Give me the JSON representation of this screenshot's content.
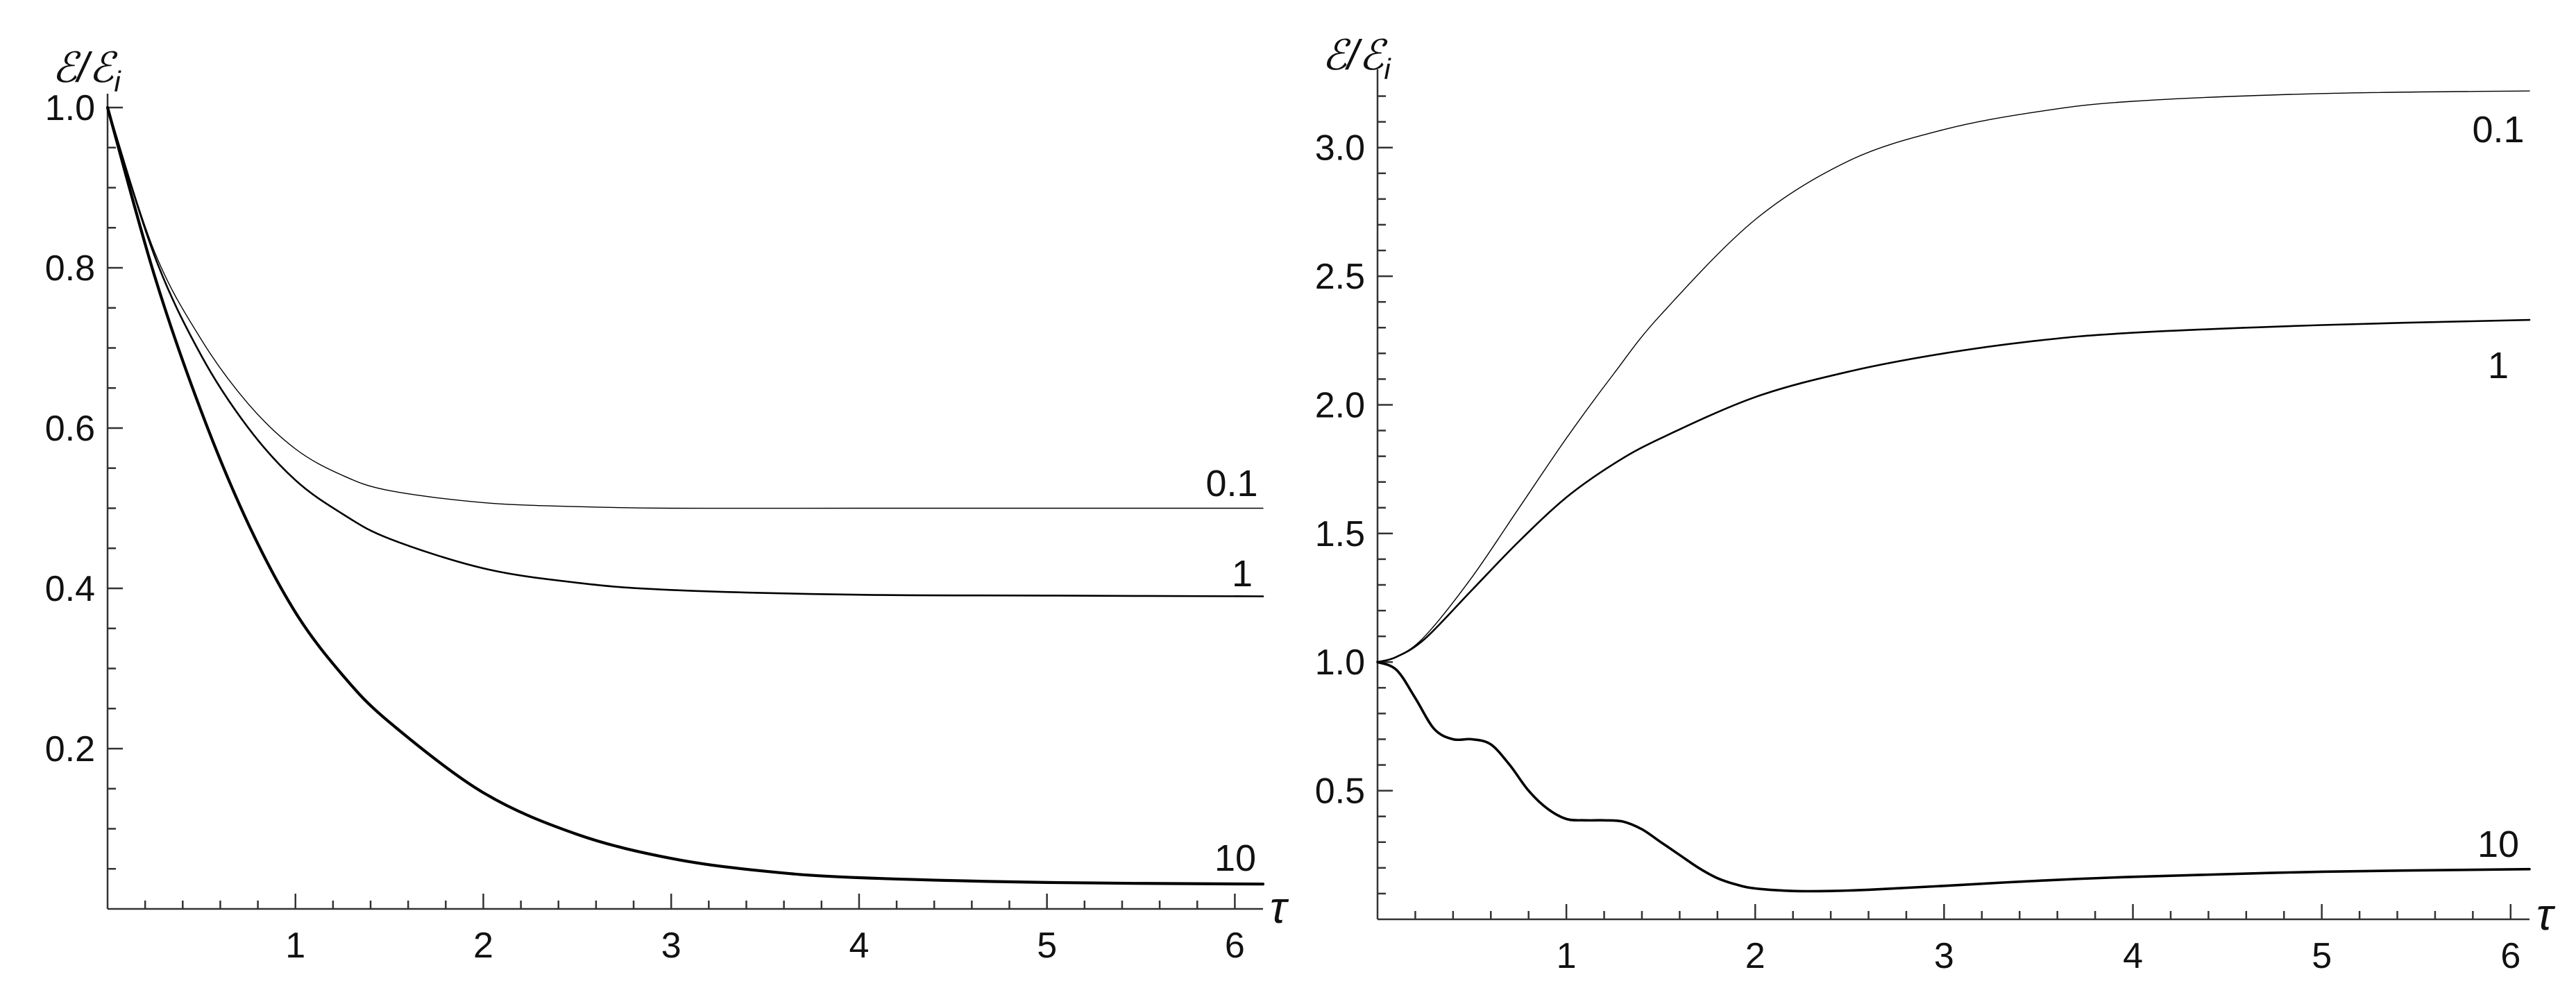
{
  "chart_data": [
    {
      "type": "line",
      "title": "",
      "xlabel": "τ",
      "ylabel": "ℰ/ℰ_i",
      "ylabel_main": "ℰ/ℰ",
      "ylabel_sub": "i",
      "xlim": [
        0,
        6.15
      ],
      "ylim": [
        0,
        1.0
      ],
      "x_ticks": [
        1,
        2,
        3,
        4,
        5,
        6
      ],
      "x_ticklabels": [
        "1",
        "2",
        "3",
        "4",
        "5",
        "6"
      ],
      "x_minor_step": 0.2,
      "y_ticks": [
        0.2,
        0.4,
        0.6,
        0.8,
        1.0
      ],
      "y_ticklabels": [
        "0.2",
        "0.4",
        "0.6",
        "0.8",
        "1.0"
      ],
      "y_minor_step": 0.05,
      "grid": false,
      "legend": "inline curve labels at right",
      "series": [
        {
          "name": "0.1",
          "weight": 1.4,
          "x": [
            0,
            0.25,
            0.5,
            0.75,
            1.0,
            1.25,
            1.5,
            2.0,
            2.5,
            3.0,
            4.0,
            5.0,
            6.15
          ],
          "y": [
            1.0,
            0.82,
            0.71,
            0.63,
            0.574,
            0.541,
            0.522,
            0.507,
            0.502,
            0.5,
            0.5,
            0.5,
            0.5
          ]
        },
        {
          "name": "1",
          "weight": 2.6,
          "x": [
            0,
            0.25,
            0.5,
            0.75,
            1.0,
            1.25,
            1.5,
            2.0,
            2.5,
            3.0,
            4.0,
            5.0,
            6.15
          ],
          "y": [
            1.0,
            0.815,
            0.69,
            0.6,
            0.535,
            0.493,
            0.462,
            0.425,
            0.407,
            0.398,
            0.392,
            0.391,
            0.39
          ]
        },
        {
          "name": "10",
          "weight": 4.2,
          "x": [
            0,
            0.25,
            0.5,
            0.75,
            1.0,
            1.25,
            1.5,
            2.0,
            2.5,
            3.0,
            3.5,
            4.0,
            5.0,
            6.15
          ],
          "y": [
            1.0,
            0.79,
            0.62,
            0.48,
            0.37,
            0.292,
            0.233,
            0.145,
            0.093,
            0.063,
            0.047,
            0.039,
            0.033,
            0.031
          ]
        }
      ]
    },
    {
      "type": "line",
      "title": "",
      "xlabel": "τ",
      "ylabel": "ℰ/ℰ_i",
      "ylabel_main": "ℰ/ℰ",
      "ylabel_sub": "i",
      "xlim": [
        0,
        6.1
      ],
      "ylim": [
        0,
        3.25
      ],
      "x_ticks": [
        1,
        2,
        3,
        4,
        5,
        6
      ],
      "x_ticklabels": [
        "1",
        "2",
        "3",
        "4",
        "5",
        "6"
      ],
      "x_minor_step": 0.2,
      "y_ticks": [
        0.5,
        1.0,
        1.5,
        2.0,
        2.5,
        3.0
      ],
      "y_ticklabels": [
        "0.5",
        "1.0",
        "1.5",
        "2.0",
        "2.5",
        "3.0"
      ],
      "y_minor_step": 0.1,
      "grid": false,
      "legend": "inline curve labels at right",
      "series": [
        {
          "name": "0.1",
          "weight": 1.4,
          "x": [
            0,
            0.1,
            0.25,
            0.5,
            0.75,
            1.0,
            1.25,
            1.5,
            2.0,
            2.5,
            3.0,
            3.5,
            4.0,
            5.0,
            6.1
          ],
          "y": [
            1.0,
            1.02,
            1.1,
            1.33,
            1.6,
            1.87,
            2.12,
            2.35,
            2.72,
            2.95,
            3.07,
            3.14,
            3.18,
            3.21,
            3.22
          ]
        },
        {
          "name": "1",
          "weight": 2.6,
          "x": [
            0,
            0.1,
            0.25,
            0.5,
            0.75,
            1.0,
            1.25,
            1.5,
            2.0,
            2.5,
            3.0,
            3.5,
            4.0,
            5.0,
            6.1
          ],
          "y": [
            1.0,
            1.02,
            1.09,
            1.28,
            1.47,
            1.64,
            1.77,
            1.87,
            2.03,
            2.13,
            2.2,
            2.25,
            2.28,
            2.31,
            2.33
          ]
        },
        {
          "name": "10",
          "weight": 3.6,
          "x": [
            0,
            0.1,
            0.2,
            0.3,
            0.4,
            0.5,
            0.6,
            0.7,
            0.8,
            0.9,
            1.0,
            1.1,
            1.2,
            1.3,
            1.4,
            1.5,
            1.6,
            1.7,
            1.8,
            1.9,
            2.0,
            2.2,
            2.4,
            2.6,
            3.0,
            3.5,
            4.0,
            5.0,
            6.1
          ],
          "y": [
            1.0,
            0.97,
            0.86,
            0.74,
            0.7,
            0.7,
            0.68,
            0.6,
            0.5,
            0.43,
            0.39,
            0.385,
            0.385,
            0.38,
            0.35,
            0.3,
            0.25,
            0.2,
            0.16,
            0.135,
            0.12,
            0.11,
            0.11,
            0.115,
            0.13,
            0.15,
            0.165,
            0.185,
            0.195
          ]
        }
      ]
    }
  ]
}
